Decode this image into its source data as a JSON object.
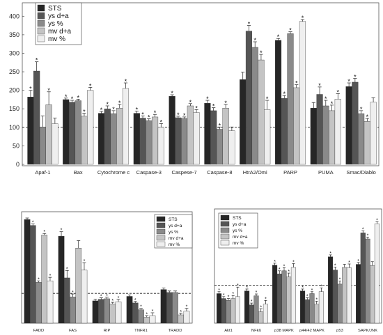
{
  "series_colors": [
    "#262626",
    "#555555",
    "#8a8a8a",
    "#c4c4c4",
    "#efefef"
  ],
  "chart_data": [
    {
      "type": "bar",
      "reference_line": 100,
      "ylim": [
        0,
        410
      ],
      "yticks": [
        0,
        50,
        100,
        150,
        200,
        250,
        300,
        350,
        400
      ],
      "categories": [
        "Apaf-1",
        "Bax",
        "Cytochrome c",
        "Caspase-3",
        "Caspese-7",
        "Caspase-8",
        "HtrA2/Omi",
        "PARP",
        "PUMA",
        "Smac/Diablo"
      ],
      "series": [
        {
          "name": "STS",
          "values": [
            182,
            175,
            138,
            138,
            184,
            165,
            229,
            335,
            152,
            210
          ],
          "errors": [
            18,
            4,
            5,
            6,
            4,
            8,
            20,
            5,
            15,
            10
          ],
          "stars": [
            1,
            1,
            1,
            1,
            1,
            1,
            0,
            1,
            0,
            1
          ]
        },
        {
          "name": "ys d+a",
          "values": [
            252,
            168,
            150,
            125,
            126,
            145,
            360,
            178,
            189,
            222
          ],
          "errors": [
            25,
            5,
            8,
            6,
            4,
            8,
            15,
            8,
            20,
            10
          ],
          "stars": [
            1,
            1,
            1,
            1,
            1,
            1,
            1,
            1,
            1,
            1
          ]
        },
        {
          "name": "ys %",
          "values": [
            101,
            172,
            137,
            118,
            124,
            95,
            316,
            353,
            158,
            137
          ],
          "errors": [
            30,
            4,
            8,
            5,
            4,
            6,
            15,
            5,
            15,
            8
          ],
          "stars": [
            0,
            1,
            1,
            1,
            1,
            1,
            1,
            1,
            1,
            1
          ]
        },
        {
          "name": "mv d+a",
          "values": [
            161,
            130,
            152,
            128,
            158,
            152,
            282,
            207,
            145,
            116
          ],
          "errors": [
            35,
            8,
            10,
            7,
            6,
            10,
            15,
            8,
            15,
            8
          ],
          "stars": [
            1,
            1,
            1,
            1,
            1,
            1,
            1,
            1,
            1,
            1
          ]
        },
        {
          "name": "mv %",
          "values": [
            110,
            200,
            205,
            100,
            140,
            91,
            148,
            386,
            176,
            168
          ],
          "errors": [
            15,
            8,
            15,
            10,
            8,
            10,
            25,
            5,
            15,
            12
          ],
          "stars": [
            0,
            1,
            1,
            1,
            1,
            0,
            1,
            1,
            1,
            0
          ]
        }
      ],
      "legend": "top-left"
    },
    {
      "type": "bar",
      "reference_line": 100,
      "ylim": [
        0,
        360
      ],
      "yticks": [],
      "categories": [
        "FADD",
        "FAS",
        "RIP",
        "TNFR1",
        "TRADD"
      ],
      "series": [
        {
          "name": "STS",
          "values": [
            348,
            292,
            75,
            90,
            113
          ],
          "errors": [
            5,
            15,
            5,
            5,
            5
          ],
          "stars": [
            0,
            1,
            0,
            0,
            0
          ]
        },
        {
          "name": "ys d+a",
          "values": [
            328,
            152,
            80,
            68,
            103
          ],
          "errors": [
            5,
            25,
            5,
            5,
            5
          ],
          "stars": [
            1,
            1,
            1,
            1,
            0
          ]
        },
        {
          "name": "ys %",
          "values": [
            137,
            88,
            82,
            45,
            103
          ],
          "errors": [
            5,
            10,
            5,
            5,
            5
          ],
          "stars": [
            1,
            1,
            1,
            1,
            0
          ]
        },
        {
          "name": "mv d+a",
          "values": [
            296,
            252,
            65,
            20,
            28
          ],
          "errors": [
            5,
            25,
            5,
            5,
            5
          ],
          "stars": [
            1,
            0,
            1,
            1,
            1
          ]
        },
        {
          "name": "mv %",
          "values": [
            142,
            178,
            72,
            25,
            40
          ],
          "errors": [
            12,
            25,
            8,
            10,
            10
          ],
          "stars": [
            1,
            1,
            1,
            1,
            1
          ]
        }
      ],
      "legend": "top-right"
    },
    {
      "type": "bar",
      "reference_line": 100,
      "ylim": [
        0,
        290
      ],
      "yticks": [],
      "categories": [
        "Akt1",
        "NFkß",
        "p38 MAPK",
        "p44/42 MAPK",
        "p53",
        "SAPK/JNK"
      ],
      "series": [
        {
          "name": "STS",
          "values": [
            78,
            85,
            153,
            85,
            175,
            155
          ],
          "errors": [
            5,
            5,
            5,
            5,
            5,
            5
          ],
          "stars": [
            1,
            1,
            1,
            1,
            1,
            1
          ]
        },
        {
          "name": "ys d+a",
          "values": [
            65,
            48,
            130,
            62,
            140,
            238
          ],
          "errors": [
            5,
            5,
            8,
            5,
            8,
            5
          ],
          "stars": [
            1,
            1,
            1,
            1,
            1,
            1
          ]
        },
        {
          "name": "ys %",
          "values": [
            60,
            72,
            138,
            78,
            103,
            222
          ],
          "errors": [
            5,
            5,
            8,
            5,
            8,
            5
          ],
          "stars": [
            1,
            1,
            1,
            1,
            1,
            1
          ]
        },
        {
          "name": "mv d+a",
          "values": [
            65,
            30,
            122,
            50,
            147,
            152
          ],
          "errors": [
            8,
            8,
            10,
            8,
            8,
            10
          ],
          "stars": [
            1,
            1,
            1,
            1,
            0,
            0
          ]
        },
        {
          "name": "mv %",
          "values": [
            70,
            50,
            147,
            83,
            146,
            262
          ],
          "errors": [
            25,
            10,
            10,
            10,
            10,
            5
          ],
          "stars": [
            1,
            1,
            1,
            1,
            1,
            1
          ]
        }
      ],
      "legend": "top-left"
    }
  ]
}
